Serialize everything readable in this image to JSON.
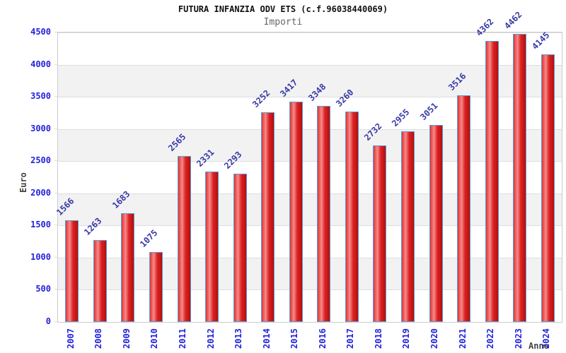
{
  "chart": {
    "title": "FUTURA INFANZIA ODV ETS (c.f.96038440069)",
    "subtitle": "Importi",
    "y_axis_title": "Euro",
    "x_axis_title": "Anno"
  },
  "chart_data": {
    "type": "bar",
    "title": "FUTURA INFANZIA ODV ETS (c.f.96038440069)",
    "subtitle": "Importi",
    "xlabel": "Anno",
    "ylabel": "Euro",
    "categories": [
      "2007",
      "2008",
      "2009",
      "2010",
      "2011",
      "2012",
      "2013",
      "2014",
      "2015",
      "2016",
      "2017",
      "2018",
      "2019",
      "2020",
      "2021",
      "2022",
      "2023",
      "2024"
    ],
    "values": [
      1566,
      1263,
      1683,
      1075,
      2565,
      2331,
      2293,
      3252,
      3417,
      3348,
      3260,
      2732,
      2955,
      3051,
      3516,
      4362,
      4462,
      4145
    ],
    "ylim": [
      0,
      4500
    ],
    "ytick_step": 500,
    "grid": true,
    "alternating_bands": true,
    "legend": "none",
    "bar_label_rotation_deg": -45,
    "x_tick_rotation_deg": -90
  },
  "colors": {
    "background": "#ffffff",
    "title": "#111111",
    "subtitle": "#666666",
    "bar_fill_left": "#e03434",
    "bar_fill_highlight": "#f58a8a",
    "bar_fill_mid": "#dd2222",
    "bar_fill_right": "#b40f0f",
    "bar_border": "#5b9bd5",
    "tick_label": "#2222dd",
    "value_label": "#3838a8",
    "axis_title": "#444444",
    "band": "#f2f2f2",
    "gridline": "#dedede",
    "plot_border": "#cccccc"
  }
}
